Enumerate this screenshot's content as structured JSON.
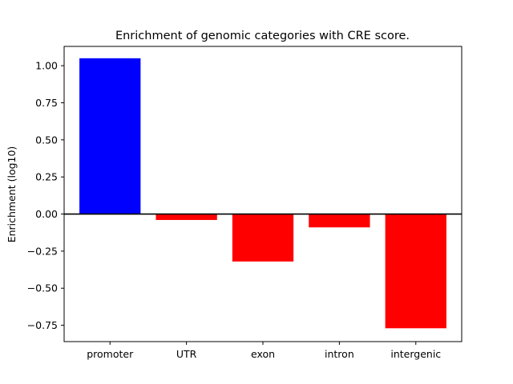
{
  "chart_data": {
    "type": "bar",
    "title": "Enrichment of genomic categories with CRE score.",
    "xlabel": "",
    "ylabel": "Enrichment (log10)",
    "categories": [
      "promoter",
      "UTR",
      "exon",
      "intron",
      "intergenic"
    ],
    "values": [
      1.05,
      -0.04,
      -0.32,
      -0.09,
      -0.77
    ],
    "bar_colors": [
      "#0000ff",
      "#ff0000",
      "#ff0000",
      "#ff0000",
      "#ff0000"
    ],
    "ylim": [
      -0.86,
      1.13
    ],
    "yticks": [
      1.0,
      0.75,
      0.5,
      0.25,
      0.0,
      -0.25,
      -0.5,
      -0.75
    ],
    "ytick_labels": [
      "1.00",
      "0.75",
      "0.50",
      "0.25",
      "0.00",
      "−0.25",
      "−0.50",
      "−0.75"
    ],
    "zero_line": true,
    "grid": false,
    "legend": "none"
  }
}
